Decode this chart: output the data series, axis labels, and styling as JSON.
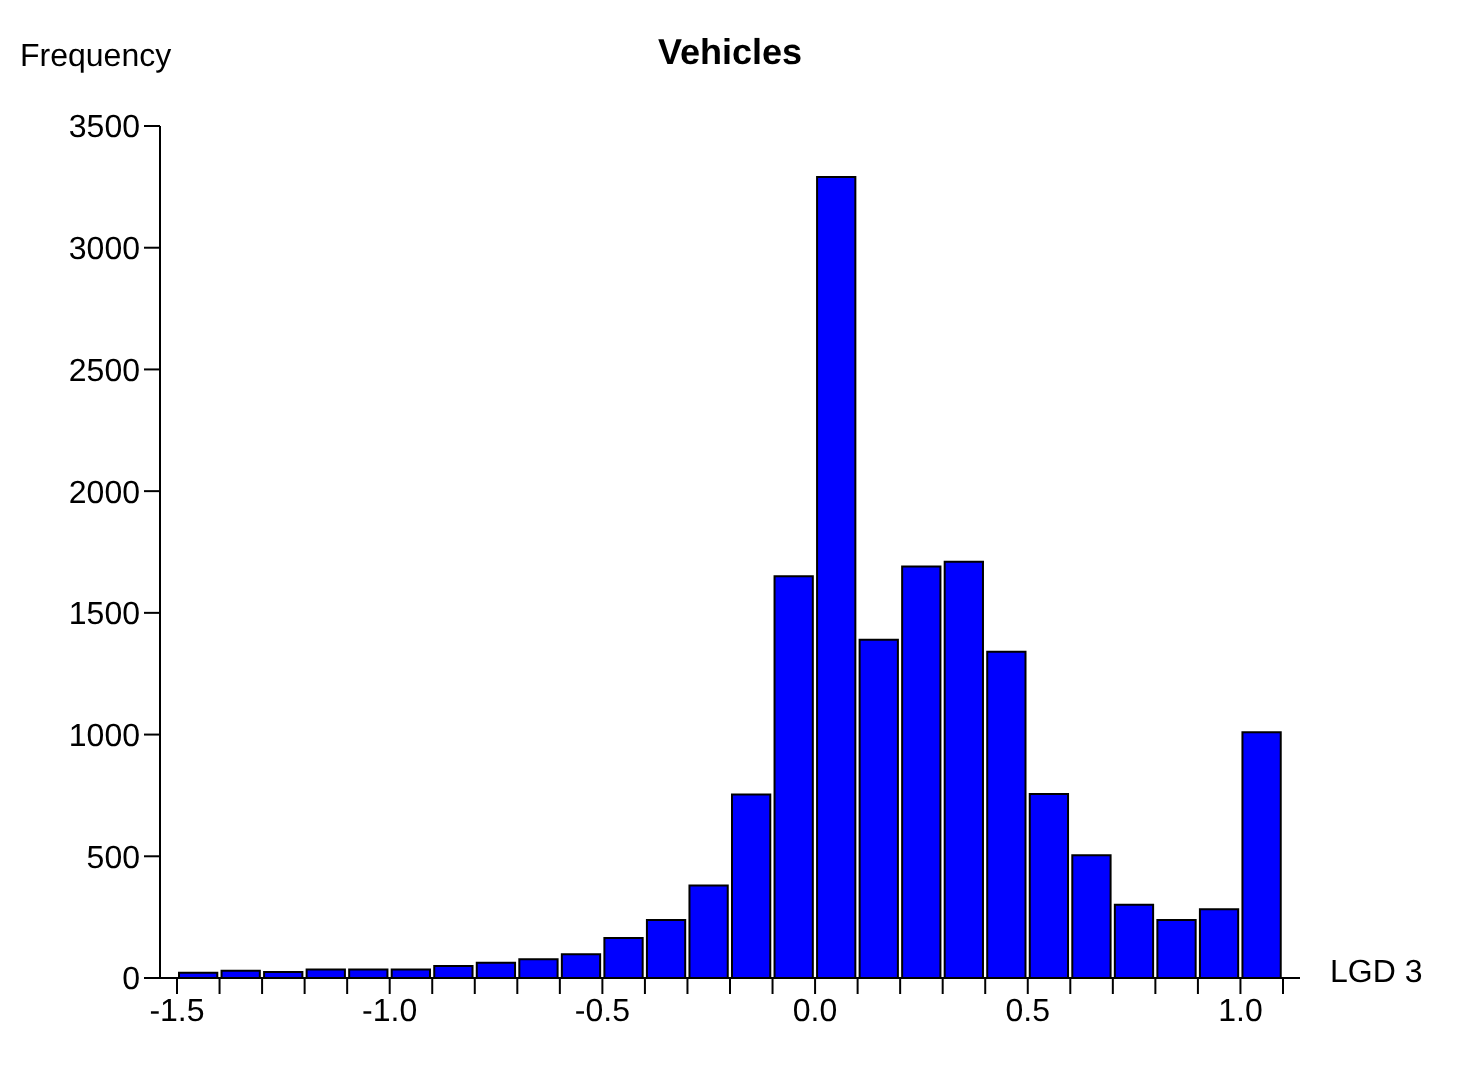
{
  "chart_data": {
    "type": "histogram",
    "title": "Vehicles",
    "xlabel": "LGD 3",
    "ylabel": "Frequency",
    "bins": [
      -1.5,
      -1.4,
      -1.3,
      -1.2,
      -1.1,
      -1.0,
      -0.9,
      -0.8,
      -0.7,
      -0.6,
      -0.5,
      -0.4,
      -0.3,
      -0.2,
      -0.1,
      0.0,
      0.1,
      0.2,
      0.3,
      0.4,
      0.5,
      0.6,
      0.7,
      0.8,
      0.9,
      1.0,
      1.1
    ],
    "values": [
      22,
      30,
      25,
      35,
      35,
      35,
      49,
      63,
      77,
      98,
      164,
      238,
      380,
      754,
      1650,
      3290,
      1390,
      1690,
      1710,
      1340,
      756,
      504,
      301,
      238,
      282,
      1010
    ],
    "color": "#0000ff",
    "xlim": [
      -1.54,
      1.14
    ],
    "xticks": [
      {
        "value": -1.5,
        "label": "-1.5"
      },
      {
        "value": -1.4,
        "label": null
      },
      {
        "value": -1.3,
        "label": null
      },
      {
        "value": -1.2,
        "label": null
      },
      {
        "value": -1.1,
        "label": null
      },
      {
        "value": -1.0,
        "label": "-1.0"
      },
      {
        "value": -0.9,
        "label": null
      },
      {
        "value": -0.8,
        "label": null
      },
      {
        "value": -0.7,
        "label": null
      },
      {
        "value": -0.6,
        "label": null
      },
      {
        "value": -0.5,
        "label": "-0.5"
      },
      {
        "value": -0.4,
        "label": null
      },
      {
        "value": -0.3,
        "label": null
      },
      {
        "value": -0.2,
        "label": null
      },
      {
        "value": -0.1,
        "label": null
      },
      {
        "value": 0.0,
        "label": "0.0"
      },
      {
        "value": 0.1,
        "label": null
      },
      {
        "value": 0.2,
        "label": null
      },
      {
        "value": 0.3,
        "label": null
      },
      {
        "value": 0.4,
        "label": null
      },
      {
        "value": 0.5,
        "label": "0.5"
      },
      {
        "value": 0.6,
        "label": null
      },
      {
        "value": 0.7,
        "label": null
      },
      {
        "value": 0.8,
        "label": null
      },
      {
        "value": 0.9,
        "label": null
      },
      {
        "value": 1.0,
        "label": "1.0"
      },
      {
        "value": 1.1,
        "label": null
      }
    ],
    "ylim": [
      0,
      3500
    ],
    "yticks": [
      0,
      500,
      1000,
      1500,
      2000,
      2500,
      3000,
      3500
    ],
    "grid": false,
    "legend": false
  }
}
